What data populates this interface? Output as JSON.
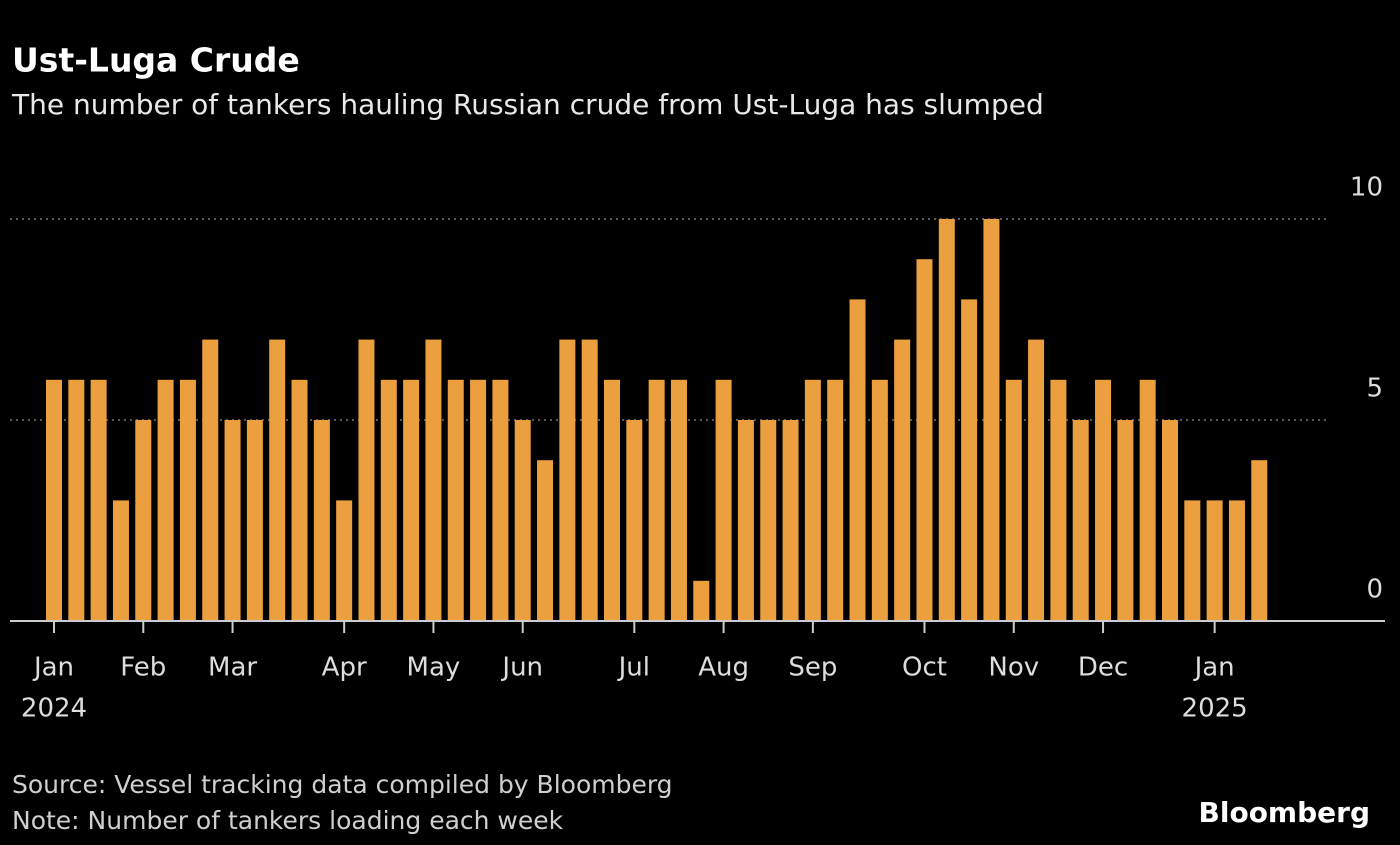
{
  "chart_data": {
    "type": "bar",
    "title": "Ust-Luga Crude",
    "subtitle": "The number of tankers hauling Russian crude from Ust-Luga has slumped",
    "source": "Source: Vessel tracking data compiled by Bloomberg",
    "note": "Note: Number of tankers loading each week",
    "brand": "Bloomberg",
    "categories": [
      "Jan",
      null,
      null,
      null,
      "Feb",
      null,
      null,
      null,
      "Mar",
      null,
      null,
      null,
      null,
      "Apr",
      null,
      null,
      null,
      "May",
      null,
      null,
      null,
      "Jun",
      null,
      null,
      null,
      null,
      "Jul",
      null,
      null,
      null,
      "Aug",
      null,
      null,
      null,
      "Sep",
      null,
      null,
      null,
      null,
      "Oct",
      null,
      null,
      null,
      "Nov",
      null,
      null,
      null,
      "Dec",
      null,
      null,
      null,
      null,
      "Jan",
      null,
      null
    ],
    "category_years": [
      "2024",
      null,
      null,
      null,
      null,
      null,
      null,
      null,
      null,
      null,
      null,
      null,
      null,
      null,
      null,
      null,
      null,
      null,
      null,
      null,
      null,
      null,
      null,
      null,
      null,
      null,
      null,
      null,
      null,
      null,
      null,
      null,
      null,
      null,
      null,
      null,
      null,
      null,
      null,
      null,
      null,
      null,
      null,
      null,
      null,
      null,
      null,
      null,
      null,
      null,
      null,
      null,
      "2025",
      null,
      null
    ],
    "values": [
      6,
      6,
      6,
      3,
      5,
      6,
      6,
      7,
      5,
      5,
      7,
      6,
      5,
      3,
      7,
      6,
      6,
      7,
      6,
      6,
      6,
      5,
      4,
      7,
      7,
      6,
      5,
      6,
      6,
      1,
      6,
      5,
      5,
      5,
      6,
      6,
      8,
      6,
      7,
      9,
      10,
      8,
      10,
      6,
      7,
      6,
      5,
      6,
      5,
      6,
      5,
      3,
      3,
      3,
      4
    ],
    "color": "#eb9f3f",
    "ylim": [
      0,
      10
    ],
    "yticks": [
      0,
      5,
      10
    ],
    "grid": true
  }
}
